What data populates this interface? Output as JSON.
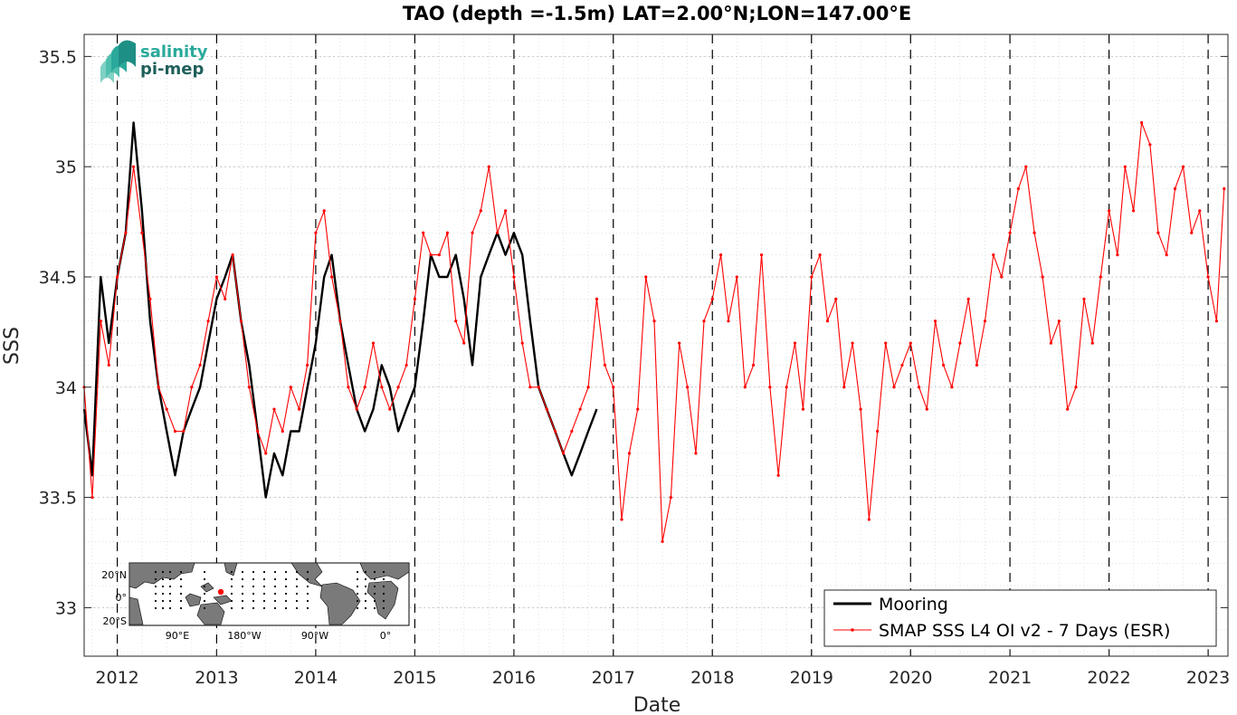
{
  "chart_data": {
    "type": "line",
    "title": "TAO (depth =-1.5m) LAT=2.00°N;LON=147.00°E",
    "xlabel": "Date",
    "ylabel": "SSS",
    "x_ticks": [
      "2012",
      "2013",
      "2014",
      "2015",
      "2016",
      "2017",
      "2018",
      "2019",
      "2020",
      "2021",
      "2022",
      "2023"
    ],
    "y_ticks": [
      "33",
      "33.5",
      "34",
      "34.5",
      "35",
      "35.5"
    ],
    "xlim": [
      "2011-09-01",
      "2023-03-15"
    ],
    "ylim": [
      32.78,
      35.6
    ],
    "grid": true,
    "year_separators": "dashed",
    "legend_position": "bottom-right",
    "series": [
      {
        "name": "Mooring",
        "color": "#000000",
        "style": "thick line",
        "x": [
          "2011-09-01",
          "2011-10-01",
          "2011-11-01",
          "2011-12-01",
          "2012-01-01",
          "2012-02-01",
          "2012-03-01",
          "2012-04-01",
          "2012-05-01",
          "2012-06-01",
          "2012-07-01",
          "2012-08-01",
          "2012-09-01",
          "2012-10-01",
          "2012-11-01",
          "2012-12-01",
          "2013-01-01",
          "2013-02-01",
          "2013-03-01",
          "2013-04-01",
          "2013-05-01",
          "2013-06-01",
          "2013-07-01",
          "2013-08-01",
          "2013-09-01",
          "2013-10-01",
          "2013-11-01",
          "2014-01-01",
          "2014-02-01",
          "2014-03-01",
          "2014-04-01",
          "2014-05-01",
          "2014-06-01",
          "2014-07-01",
          "2014-08-01",
          "2014-09-01",
          "2014-10-01",
          "2014-11-01",
          "2014-12-01",
          "2015-01-01",
          "2015-02-01",
          "2015-03-01",
          "2015-04-01",
          "2015-05-01",
          "2015-06-01",
          "2015-07-01",
          "2015-08-01",
          "2015-09-01",
          "2015-10-01",
          "2015-11-01",
          "2015-12-01",
          "2016-01-01",
          "2016-02-01",
          "2016-03-01",
          "2016-04-01",
          "2016-05-01",
          "2016-06-01",
          "2016-07-01",
          "2016-08-01",
          "2016-09-01",
          "2016-10-01",
          "2016-11-01"
        ],
        "values": [
          33.9,
          33.6,
          34.5,
          34.2,
          34.5,
          34.7,
          35.2,
          34.8,
          34.3,
          34.0,
          33.8,
          33.6,
          33.8,
          33.9,
          34.0,
          34.2,
          34.4,
          34.5,
          34.6,
          34.3,
          34.1,
          33.8,
          33.5,
          33.7,
          33.6,
          33.8,
          33.8,
          34.2,
          34.5,
          34.6,
          34.3,
          34.1,
          33.9,
          33.8,
          33.9,
          34.1,
          34.0,
          33.8,
          33.9,
          34.0,
          34.3,
          34.6,
          34.5,
          34.5,
          34.6,
          34.4,
          34.1,
          34.5,
          34.6,
          34.7,
          34.6,
          34.7,
          34.6,
          34.3,
          34.0,
          33.9,
          33.8,
          33.7,
          33.6,
          33.7,
          33.8,
          33.9
        ]
      },
      {
        "name": "SMAP SSS L4 OI v2 - 7 Days (ESR)",
        "color": "#ff0000",
        "style": "thin line with dots",
        "x": [
          "2011-09-01",
          "2011-10-01",
          "2011-11-01",
          "2011-12-01",
          "2012-01-01",
          "2012-02-01",
          "2012-03-01",
          "2012-04-01",
          "2012-05-01",
          "2012-06-01",
          "2012-07-01",
          "2012-08-01",
          "2012-09-01",
          "2012-10-01",
          "2012-11-01",
          "2012-12-01",
          "2013-01-01",
          "2013-02-01",
          "2013-03-01",
          "2013-04-01",
          "2013-05-01",
          "2013-06-01",
          "2013-07-01",
          "2013-08-01",
          "2013-09-01",
          "2013-10-01",
          "2013-11-01",
          "2013-12-01",
          "2014-01-01",
          "2014-02-01",
          "2014-03-01",
          "2014-04-01",
          "2014-05-01",
          "2014-06-01",
          "2014-07-01",
          "2014-08-01",
          "2014-09-01",
          "2014-10-01",
          "2014-11-01",
          "2014-12-01",
          "2015-01-01",
          "2015-02-01",
          "2015-03-01",
          "2015-04-01",
          "2015-05-01",
          "2015-06-01",
          "2015-07-01",
          "2015-08-01",
          "2015-09-01",
          "2015-10-01",
          "2015-11-01",
          "2015-12-01",
          "2016-01-01",
          "2016-02-01",
          "2016-03-01",
          "2016-04-01",
          "2016-05-01",
          "2016-06-01",
          "2016-07-01",
          "2016-08-01",
          "2016-09-01",
          "2016-10-01",
          "2016-11-01",
          "2016-12-01",
          "2017-01-01",
          "2017-02-01",
          "2017-03-01",
          "2017-04-01",
          "2017-05-01",
          "2017-06-01",
          "2017-07-01",
          "2017-08-01",
          "2017-09-01",
          "2017-10-01",
          "2017-11-01",
          "2017-12-01",
          "2018-01-01",
          "2018-02-01",
          "2018-03-01",
          "2018-04-01",
          "2018-05-01",
          "2018-06-01",
          "2018-07-01",
          "2018-08-01",
          "2018-09-01",
          "2018-10-01",
          "2018-11-01",
          "2018-12-01",
          "2019-01-01",
          "2019-02-01",
          "2019-03-01",
          "2019-04-01",
          "2019-05-01",
          "2019-06-01",
          "2019-07-01",
          "2019-08-01",
          "2019-09-01",
          "2019-10-01",
          "2019-11-01",
          "2019-12-01",
          "2020-01-01",
          "2020-02-01",
          "2020-03-01",
          "2020-04-01",
          "2020-05-01",
          "2020-06-01",
          "2020-07-01",
          "2020-08-01",
          "2020-09-01",
          "2020-10-01",
          "2020-11-01",
          "2020-12-01",
          "2021-01-01",
          "2021-02-01",
          "2021-03-01",
          "2021-04-01",
          "2021-05-01",
          "2021-06-01",
          "2021-07-01",
          "2021-08-01",
          "2021-09-01",
          "2021-10-01",
          "2021-11-01",
          "2021-12-01",
          "2022-01-01",
          "2022-02-01",
          "2022-03-01",
          "2022-04-01",
          "2022-05-01",
          "2022-06-01",
          "2022-07-01",
          "2022-08-01",
          "2022-09-01",
          "2022-10-01",
          "2022-11-01",
          "2022-12-01",
          "2023-01-01",
          "2023-02-01",
          "2023-03-01"
        ],
        "values": [
          34.0,
          33.5,
          34.3,
          34.1,
          34.5,
          34.7,
          35.0,
          34.7,
          34.4,
          34.0,
          33.9,
          33.8,
          33.8,
          34.0,
          34.1,
          34.3,
          34.5,
          34.4,
          34.6,
          34.3,
          34.0,
          33.8,
          33.7,
          33.9,
          33.8,
          34.0,
          33.9,
          34.1,
          34.7,
          34.8,
          34.5,
          34.3,
          34.0,
          33.9,
          34.0,
          34.2,
          34.0,
          33.9,
          34.0,
          34.1,
          34.4,
          34.7,
          34.6,
          34.6,
          34.7,
          34.3,
          34.2,
          34.7,
          34.8,
          35.0,
          34.7,
          34.8,
          34.5,
          34.2,
          34.0,
          34.0,
          33.9,
          33.8,
          33.7,
          33.8,
          33.9,
          34.0,
          34.4,
          34.1,
          34.0,
          33.4,
          33.7,
          33.9,
          34.5,
          34.3,
          33.3,
          33.5,
          34.2,
          34.0,
          33.7,
          34.3,
          34.4,
          34.6,
          34.3,
          34.5,
          34.0,
          34.1,
          34.6,
          34.0,
          33.6,
          34.0,
          34.2,
          33.9,
          34.5,
          34.6,
          34.3,
          34.4,
          34.0,
          34.2,
          33.9,
          33.4,
          33.8,
          34.2,
          34.0,
          34.1,
          34.2,
          34.0,
          33.9,
          34.3,
          34.1,
          34.0,
          34.2,
          34.4,
          34.1,
          34.3,
          34.6,
          34.5,
          34.7,
          34.9,
          35.0,
          34.7,
          34.5,
          34.2,
          34.3,
          33.9,
          34.0,
          34.4,
          34.2,
          34.5,
          34.8,
          34.6,
          35.0,
          34.8,
          35.2,
          35.1,
          34.7,
          34.6,
          34.9,
          35.0,
          34.7,
          34.8,
          34.5,
          34.3,
          34.9
        ]
      }
    ]
  },
  "inset_map": {
    "lat_ticks": [
      "20°N",
      "0°",
      "20°S"
    ],
    "lon_ticks": [
      "90°E",
      "180°W",
      "90°W",
      "0°"
    ],
    "marker_color": "#ff0000",
    "land_color": "#7a7a7a"
  },
  "logo": {
    "line1": "salinity",
    "line2": "pi-mep",
    "color1": "#2aa99b",
    "color2": "#1f5f5a"
  }
}
